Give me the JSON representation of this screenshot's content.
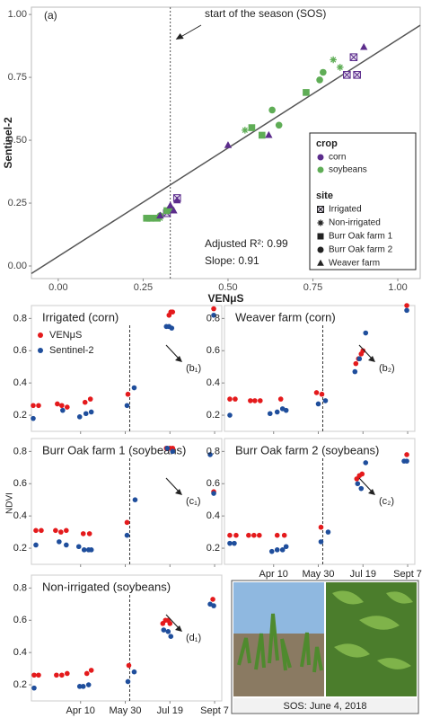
{
  "chart_data": [
    {
      "type": "scatter",
      "panel_label": "(a)",
      "xlabel": "VENμS",
      "ylabel": "Sentinel-2",
      "xlim": [
        -0.079,
        1.066
      ],
      "ylim": [
        -0.05,
        1.029
      ],
      "xticks": [
        {
          "value": 0,
          "label": "0.00"
        },
        {
          "value": 0.25,
          "label": "0.25"
        },
        {
          "value": 0.5,
          "label": "0.50"
        },
        {
          "value": 0.75,
          "label": "0.75"
        },
        {
          "value": 1,
          "label": "1.00"
        }
      ],
      "yticks": [
        {
          "value": 0,
          "label": "0.00"
        },
        {
          "value": 0.25,
          "label": "0.25"
        },
        {
          "value": 0.5,
          "label": "0.50"
        },
        {
          "value": 0.75,
          "label": "0.75"
        },
        {
          "value": 1,
          "label": "1.00"
        }
      ],
      "sos": 0.33,
      "sos_label": "start of the season (SOS)",
      "fit_line": {
        "x": [
          -0.079,
          1.066
        ],
        "y": [
          -0.03,
          0.957
        ]
      },
      "stats": [
        "Adjusted R²: 0.99",
        "Slope: 0.91"
      ],
      "crop_legend": {
        "title": "crop",
        "items": [
          {
            "name": "corn",
            "color": "#5c2d8c"
          },
          {
            "name": "soybeans",
            "color": "#5fad56"
          }
        ]
      },
      "site_legend": {
        "title": "site",
        "items": [
          {
            "name": "Irrigated",
            "marker": "square-x"
          },
          {
            "name": "Non-irrigated",
            "marker": "asterisk"
          },
          {
            "name": "Burr Oak farm 1",
            "marker": "square"
          },
          {
            "name": "Burr Oak farm 2",
            "marker": "circle"
          },
          {
            "name": "Weaver farm",
            "marker": "triangle"
          }
        ]
      },
      "series": [
        {
          "crop": "corn",
          "site": "Irrigated",
          "x": [
            0.35,
            0.85,
            0.88,
            0.87,
            0.32
          ],
          "y": [
            0.27,
            0.76,
            0.76,
            0.83,
            0.21
          ]
        },
        {
          "crop": "soybeans",
          "site": "Non-irrigated",
          "x": [
            0.55,
            0.81,
            0.83,
            0.3,
            0.28
          ],
          "y": [
            0.54,
            0.82,
            0.79,
            0.19,
            0.19
          ]
        },
        {
          "crop": "soybeans",
          "site": "Burr Oak farm 1",
          "x": [
            0.26,
            0.27,
            0.29,
            0.57,
            0.6,
            0.73,
            0.32
          ],
          "y": [
            0.19,
            0.19,
            0.19,
            0.55,
            0.52,
            0.69,
            0.22
          ]
        },
        {
          "crop": "soybeans",
          "site": "Burr Oak farm 2",
          "x": [
            0.27,
            0.3,
            0.33,
            0.65,
            0.63,
            0.77,
            0.78
          ],
          "y": [
            0.19,
            0.2,
            0.23,
            0.56,
            0.62,
            0.74,
            0.77
          ]
        },
        {
          "crop": "corn",
          "site": "Weaver farm",
          "x": [
            0.3,
            0.33,
            0.35,
            0.5,
            0.62,
            0.9,
            0.34
          ],
          "y": [
            0.2,
            0.24,
            0.26,
            0.48,
            0.52,
            0.87,
            0.22
          ]
        }
      ]
    },
    {
      "type": "timeseries",
      "title": "Irrigated (corn)",
      "xlim": [
        45,
        258
      ],
      "ylim": [
        0.1,
        0.88
      ],
      "xticks": [
        100,
        150,
        200,
        250
      ],
      "yticks": [
        0.2,
        0.4,
        0.6,
        0.8
      ],
      "sos": 155,
      "annotation": "(b₁)",
      "series": [
        {
          "name": "VENμS",
          "color": "#e41a1c",
          "x": [
            47,
            53,
            74,
            79,
            85,
            105,
            111,
            153,
            199,
            201,
            203,
            249
          ],
          "y": [
            0.26,
            0.26,
            0.27,
            0.26,
            0.25,
            0.28,
            0.3,
            0.33,
            0.82,
            0.84,
            0.84,
            0.86
          ]
        },
        {
          "name": "Sentinel-2",
          "color": "#1f4e9c",
          "x": [
            47,
            80,
            99,
            106,
            112,
            152,
            160,
            196,
            199,
            202,
            249
          ],
          "y": [
            0.18,
            0.23,
            0.19,
            0.21,
            0.22,
            0.26,
            0.37,
            0.75,
            0.75,
            0.74,
            0.82
          ]
        }
      ]
    },
    {
      "type": "timeseries",
      "title": "Weaver farm (corn)",
      "xlim": [
        45,
        258
      ],
      "ylim": [
        0.1,
        0.88
      ],
      "xticks": [
        100,
        150,
        200,
        250
      ],
      "yticks": [
        0.2,
        0.4,
        0.6,
        0.8
      ],
      "sos": 155,
      "annotation": "(b₂)",
      "series": [
        {
          "color": "#e41a1c",
          "x": [
            51,
            57,
            74,
            79,
            85,
            108,
            148,
            154,
            192,
            195,
            198,
            200,
            249
          ],
          "y": [
            0.3,
            0.3,
            0.29,
            0.29,
            0.29,
            0.3,
            0.34,
            0.33,
            0.52,
            0.55,
            0.58,
            0.6,
            0.88
          ]
        },
        {
          "color": "#1f4e9c",
          "x": [
            51,
            96,
            104,
            110,
            114,
            150,
            158,
            191,
            196,
            203,
            249
          ],
          "y": [
            0.2,
            0.21,
            0.22,
            0.24,
            0.23,
            0.27,
            0.29,
            0.47,
            0.55,
            0.71,
            0.85
          ]
        }
      ]
    },
    {
      "type": "timeseries",
      "title": "Burr Oak farm 1 (soybeans)",
      "xlim": [
        45,
        258
      ],
      "ylim": [
        0.1,
        0.88
      ],
      "xticks": [
        100,
        150,
        200,
        250
      ],
      "yticks": [
        0.2,
        0.4,
        0.6,
        0.8
      ],
      "sos": 155,
      "annotation": "(c₁)",
      "series": [
        {
          "color": "#e41a1c",
          "x": [
            50,
            56,
            72,
            78,
            84,
            103,
            110,
            152,
            196,
            200,
            203,
            249
          ],
          "y": [
            0.31,
            0.31,
            0.31,
            0.3,
            0.31,
            0.29,
            0.29,
            0.36,
            0.82,
            0.82,
            0.82,
            0.55
          ]
        },
        {
          "color": "#1f4e9c",
          "x": [
            50,
            76,
            84,
            98,
            104,
            109,
            112,
            152,
            161,
            197,
            203,
            245,
            249
          ],
          "y": [
            0.22,
            0.24,
            0.22,
            0.21,
            0.19,
            0.19,
            0.19,
            0.28,
            0.5,
            0.82,
            0.8,
            0.78,
            0.54
          ]
        }
      ]
    },
    {
      "type": "timeseries",
      "title": "Burr Oak farm 2 (soybeans)",
      "xlim": [
        45,
        258
      ],
      "ylim": [
        0.1,
        0.88
      ],
      "xticks": [
        {
          "value": 100,
          "label": "Apr 10"
        },
        {
          "value": 150,
          "label": "May 30"
        },
        {
          "value": 200,
          "label": "Jul 19"
        },
        {
          "value": 250,
          "label": "Sept 7"
        }
      ],
      "yticks": [
        0.2,
        0.4,
        0.6,
        0.8
      ],
      "sos": 155,
      "annotation": "(c₂)",
      "series": [
        {
          "color": "#e41a1c",
          "x": [
            51,
            58,
            72,
            78,
            84,
            104,
            112,
            153,
            193,
            196,
            199,
            249
          ],
          "y": [
            0.28,
            0.28,
            0.28,
            0.28,
            0.28,
            0.28,
            0.28,
            0.33,
            0.63,
            0.65,
            0.66,
            0.78
          ]
        },
        {
          "color": "#1f4e9c",
          "x": [
            51,
            56,
            98,
            104,
            110,
            114,
            153,
            161,
            194,
            198,
            203,
            246,
            249
          ],
          "y": [
            0.23,
            0.23,
            0.18,
            0.19,
            0.19,
            0.21,
            0.24,
            0.3,
            0.6,
            0.57,
            0.73,
            0.74,
            0.74
          ]
        }
      ]
    },
    {
      "type": "timeseries",
      "title": "Non-irrigated (soybeans)",
      "xlim": [
        45,
        258
      ],
      "ylim": [
        0.1,
        0.88
      ],
      "xticks": [
        {
          "value": 100,
          "label": "Apr 10"
        },
        {
          "value": 150,
          "label": "May 30"
        },
        {
          "value": 200,
          "label": "Jul 19"
        },
        {
          "value": 250,
          "label": "Sept 7"
        }
      ],
      "yticks": [
        0.2,
        0.4,
        0.6,
        0.8
      ],
      "sos": 155,
      "annotation": "(d₁)",
      "series": [
        {
          "color": "#e41a1c",
          "x": [
            48,
            53,
            73,
            79,
            85,
            107,
            112,
            154,
            192,
            195,
            198,
            200,
            248
          ],
          "y": [
            0.26,
            0.26,
            0.26,
            0.26,
            0.27,
            0.27,
            0.29,
            0.32,
            0.58,
            0.6,
            0.6,
            0.58,
            0.73
          ]
        },
        {
          "color": "#1f4e9c",
          "x": [
            48,
            99,
            103,
            109,
            153,
            160,
            193,
            198,
            201,
            245,
            249
          ],
          "y": [
            0.18,
            0.19,
            0.19,
            0.2,
            0.22,
            0.28,
            0.54,
            0.53,
            0.5,
            0.7,
            0.69
          ]
        }
      ]
    }
  ],
  "figure": {
    "ylabel": "NDVI",
    "photo_caption": "SOS: June 4, 2018"
  }
}
